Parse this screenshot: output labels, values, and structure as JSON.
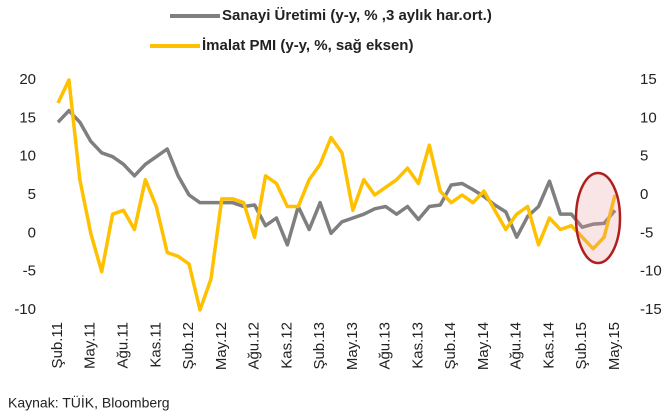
{
  "chart_data": {
    "type": "line",
    "categories": [
      "Şub.11",
      null,
      null,
      "May.11",
      null,
      null,
      "Ağu.11",
      null,
      null,
      "Kas.11",
      null,
      null,
      "Şub.12",
      null,
      null,
      "May.12",
      null,
      null,
      "Ağu.12",
      null,
      null,
      "Kas.12",
      null,
      null,
      "Şub.13",
      null,
      null,
      "May.13",
      null,
      null,
      "Ağu.13",
      null,
      null,
      "Kas.13",
      null,
      null,
      "Şub.14",
      null,
      null,
      "May.14",
      null,
      null,
      "Ağu.14",
      null,
      null,
      "Kas.14",
      null,
      null,
      "Şub.15",
      null,
      null,
      "May.15"
    ],
    "series": [
      {
        "name": "Sanayi Üretimi (y-y, % ,3 aylık har.ort.)",
        "color": "#7f7f7f",
        "axis": "y",
        "values": [
          14.5,
          16,
          14.5,
          12,
          10.5,
          10,
          9,
          7.5,
          9,
          10,
          11,
          7.5,
          5,
          4,
          4,
          4,
          4,
          3.5,
          3.7,
          1,
          2,
          -1.5,
          3.5,
          0.5,
          4,
          0,
          1.5,
          2,
          2.5,
          3.2,
          3.5,
          2.5,
          3.5,
          1.8,
          3.5,
          3.7,
          6.3,
          6.5,
          5.7,
          4.8,
          3.7,
          2.8,
          -0.5,
          2.2,
          3.5,
          6.8,
          2.5,
          2.5,
          0.8,
          1.2,
          1.3,
          3
        ]
      },
      {
        "name": "İmalat PMI (y-y, %, sağ eksen)",
        "color": "#ffc000",
        "axis": "y2",
        "values": [
          12,
          15,
          2,
          -5,
          -10,
          -2.5,
          -2,
          -4.5,
          2,
          -1.5,
          -7.5,
          -8,
          -9,
          -15,
          -11,
          -0.5,
          -0.5,
          -1,
          -5.5,
          2.5,
          1.5,
          -1.5,
          -1.5,
          2,
          4,
          7.5,
          5.5,
          -2,
          2,
          0,
          1,
          2,
          3.5,
          1.5,
          6.5,
          0.5,
          -1,
          0,
          -1,
          0.5,
          -2,
          -4.5,
          -2.5,
          -1.5,
          -6.5,
          -3,
          -4.5,
          -4,
          -5.5,
          -7,
          -5.5,
          0
        ]
      }
    ],
    "ylim": [
      -10,
      20
    ],
    "yticks": [
      -10,
      -5,
      0,
      5,
      10,
      15,
      20
    ],
    "y2lim": [
      -15,
      15
    ],
    "y2ticks": [
      -15,
      -10,
      -5,
      0,
      5,
      10,
      15
    ],
    "source": "Kaynak: TÜİK, Bloomberg"
  }
}
